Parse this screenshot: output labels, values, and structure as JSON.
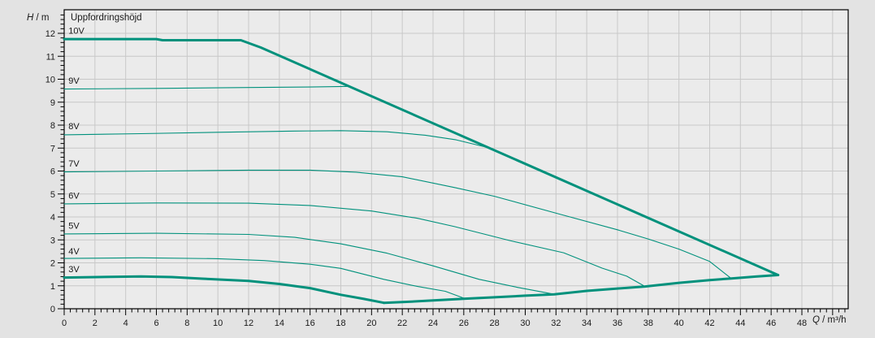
{
  "chart": {
    "title": "Uppfordringshöjd",
    "y_axis": {
      "symbol": "H",
      "unit": " / m"
    },
    "x_axis": {
      "symbol": "Q",
      "unit": " / m³/h"
    }
  },
  "chart_data": {
    "type": "line",
    "title": "Uppfordringshöjd",
    "xlabel": "Q / m³/h",
    "ylabel": "H / m",
    "xlim": [
      0,
      48
    ],
    "ylim": [
      0,
      12
    ],
    "grid": true,
    "colors": {
      "curve": "#00917C",
      "series_label": "#35A79F",
      "grid": "#C8C8C8",
      "plot_bg": "#EBEBEB",
      "page_bg": "#E3E3E3",
      "frame": "#000000"
    },
    "x_axis": {
      "min": 0,
      "max": 48,
      "major_step": 2,
      "minor_step": 0.4,
      "tick_labels": [
        "0",
        "2",
        "4",
        "6",
        "8",
        "10",
        "12",
        "14",
        "16",
        "18",
        "20",
        "22",
        "24",
        "26",
        "28",
        "30",
        "32",
        "34",
        "36",
        "38",
        "40",
        "42",
        "44",
        "46",
        "48"
      ]
    },
    "y_axis": {
      "min": 0,
      "max": 12,
      "major_step": 1,
      "minor_step": 0.2,
      "tick_labels": [
        "0",
        "1",
        "2",
        "3",
        "4",
        "5",
        "6",
        "7",
        "8",
        "9",
        "10",
        "11",
        "12"
      ]
    },
    "series": [
      {
        "name": "3V",
        "style": "thick",
        "label_h": 1.74,
        "points": [
          [
            0,
            1.36
          ],
          [
            3,
            1.39
          ],
          [
            5,
            1.41
          ],
          [
            7,
            1.38
          ],
          [
            9,
            1.31
          ],
          [
            12,
            1.21
          ],
          [
            14,
            1.08
          ],
          [
            16,
            0.9
          ],
          [
            18,
            0.61
          ],
          [
            19.5,
            0.43
          ],
          [
            20.8,
            0.26
          ]
        ]
      },
      {
        "name": "4V",
        "style": "thin",
        "label_h": 2.52,
        "points": [
          [
            0,
            2.19
          ],
          [
            5,
            2.22
          ],
          [
            10,
            2.18
          ],
          [
            13,
            2.1
          ],
          [
            16,
            1.94
          ],
          [
            18,
            1.76
          ],
          [
            20.8,
            1.28
          ],
          [
            23,
            0.97
          ],
          [
            24.8,
            0.76
          ],
          [
            26.1,
            0.44
          ]
        ]
      },
      {
        "name": "5V",
        "style": "thin",
        "label_h": 3.62,
        "points": [
          [
            0,
            3.26
          ],
          [
            6,
            3.29
          ],
          [
            12,
            3.24
          ],
          [
            15,
            3.11
          ],
          [
            18,
            2.83
          ],
          [
            21,
            2.42
          ],
          [
            24,
            1.87
          ],
          [
            27,
            1.28
          ],
          [
            29.5,
            0.93
          ],
          [
            31.9,
            0.63
          ]
        ]
      },
      {
        "name": "6V",
        "style": "thin",
        "label_h": 4.93,
        "points": [
          [
            0,
            4.57
          ],
          [
            6,
            4.61
          ],
          [
            12,
            4.6
          ],
          [
            16,
            4.5
          ],
          [
            20,
            4.26
          ],
          [
            23,
            3.94
          ],
          [
            25.4,
            3.58
          ],
          [
            29,
            2.97
          ],
          [
            32.5,
            2.44
          ],
          [
            35,
            1.77
          ],
          [
            36.6,
            1.42
          ],
          [
            37.8,
            0.97
          ]
        ]
      },
      {
        "name": "7V",
        "style": "thin",
        "label_h": 6.33,
        "points": [
          [
            0,
            5.96
          ],
          [
            6,
            6.0
          ],
          [
            12,
            6.04
          ],
          [
            16,
            6.04
          ],
          [
            19,
            5.95
          ],
          [
            22,
            5.75
          ],
          [
            25.4,
            5.28
          ],
          [
            28,
            4.9
          ],
          [
            32.3,
            4.11
          ],
          [
            36,
            3.44
          ],
          [
            38,
            3.04
          ],
          [
            40,
            2.6
          ],
          [
            42,
            2.06
          ],
          [
            43.4,
            1.32
          ]
        ]
      },
      {
        "name": "8V",
        "style": "thin",
        "label_h": 7.97,
        "points": [
          [
            0,
            7.58
          ],
          [
            5,
            7.63
          ],
          [
            10,
            7.69
          ],
          [
            15,
            7.74
          ],
          [
            18,
            7.76
          ],
          [
            21,
            7.71
          ],
          [
            23.5,
            7.56
          ],
          [
            25.5,
            7.36
          ],
          [
            27.9,
            6.97
          ]
        ]
      },
      {
        "name": "9V",
        "style": "thin",
        "label_h": 9.95,
        "points": [
          [
            0,
            9.57
          ],
          [
            6,
            9.6
          ],
          [
            12,
            9.64
          ],
          [
            16,
            9.66
          ],
          [
            18.6,
            9.69
          ]
        ]
      },
      {
        "name": "10V",
        "style": "thick",
        "label_h": 12.12,
        "points": [
          [
            0,
            11.75
          ],
          [
            6,
            11.75
          ],
          [
            6.4,
            11.7
          ],
          [
            11.5,
            11.7
          ],
          [
            12.8,
            11.38
          ],
          [
            46.45,
            1.47
          ]
        ]
      },
      {
        "name": "max-flow-envelope",
        "style": "thick",
        "label_h": null,
        "points": [
          [
            20.8,
            0.26
          ],
          [
            22,
            0.29
          ],
          [
            24,
            0.36
          ],
          [
            26.1,
            0.44
          ],
          [
            28,
            0.5
          ],
          [
            30,
            0.57
          ],
          [
            31.9,
            0.63
          ],
          [
            34,
            0.78
          ],
          [
            36,
            0.88
          ],
          [
            37.8,
            0.97
          ],
          [
            40,
            1.13
          ],
          [
            42,
            1.25
          ],
          [
            43.4,
            1.32
          ],
          [
            45,
            1.4
          ],
          [
            46.45,
            1.47
          ]
        ]
      }
    ]
  }
}
